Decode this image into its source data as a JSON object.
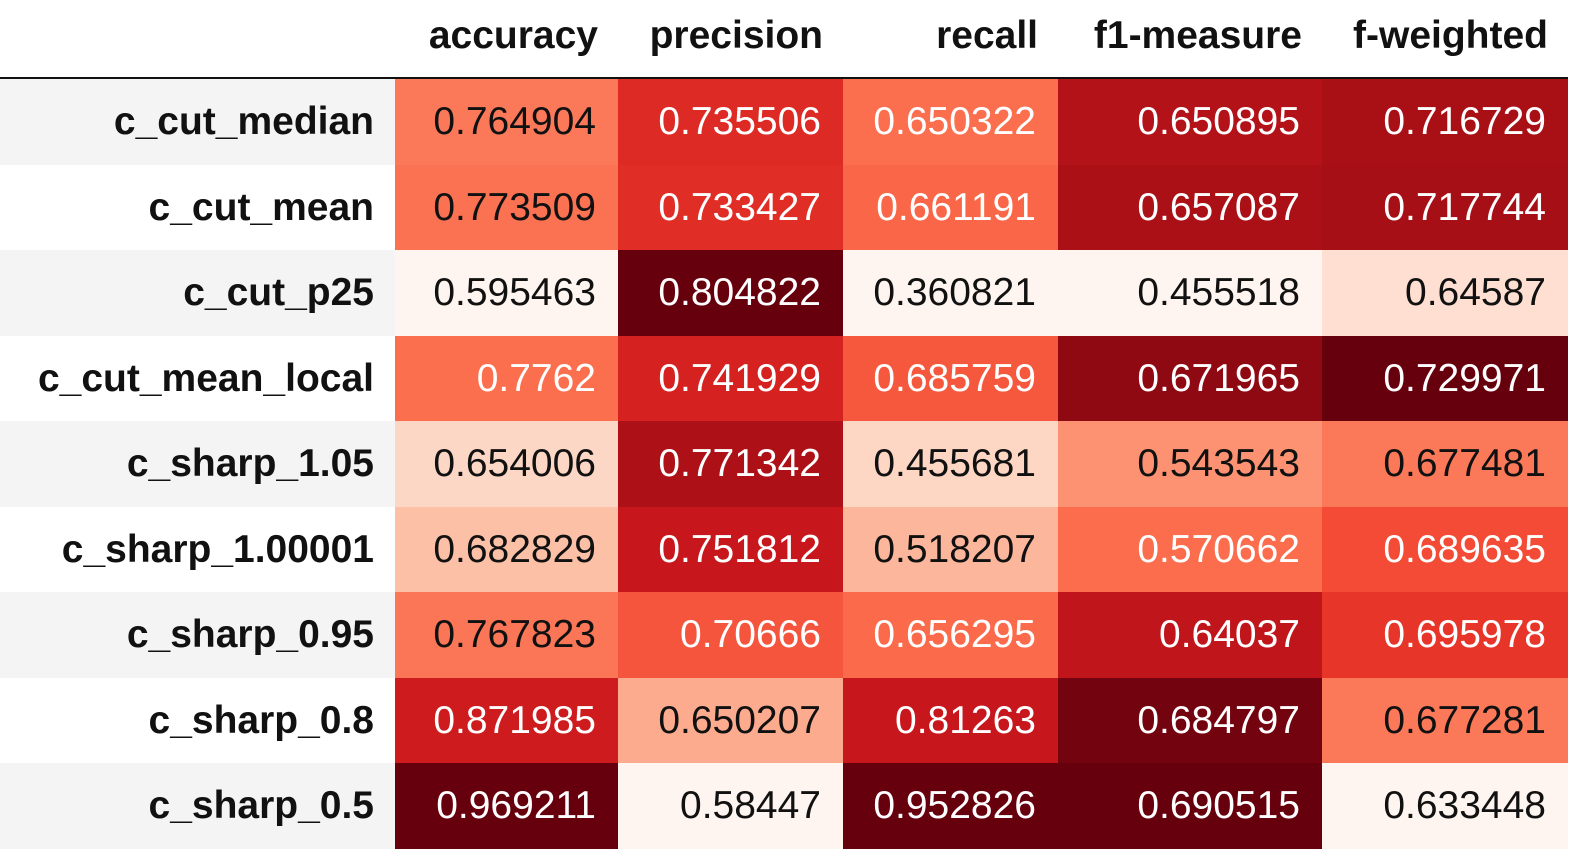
{
  "chart_data": {
    "type": "heatmap",
    "columns": [
      "accuracy",
      "precision",
      "recall",
      "f1-measure",
      "f-weighted"
    ],
    "rows": [
      {
        "label": "c_cut_median",
        "values": [
          "0.764904",
          "0.735506",
          "0.650322",
          "0.650895",
          "0.716729"
        ]
      },
      {
        "label": "c_cut_mean",
        "values": [
          "0.773509",
          "0.733427",
          "0.661191",
          "0.657087",
          "0.717744"
        ]
      },
      {
        "label": "c_cut_p25",
        "values": [
          "0.595463",
          "0.804822",
          "0.360821",
          "0.455518",
          "0.64587"
        ]
      },
      {
        "label": "c_cut_mean_local",
        "values": [
          "0.7762",
          "0.741929",
          "0.685759",
          "0.671965",
          "0.729971"
        ]
      },
      {
        "label": "c_sharp_1.05",
        "values": [
          "0.654006",
          "0.771342",
          "0.455681",
          "0.543543",
          "0.677481"
        ]
      },
      {
        "label": "c_sharp_1.00001",
        "values": [
          "0.682829",
          "0.751812",
          "0.518207",
          "0.570662",
          "0.689635"
        ]
      },
      {
        "label": "c_sharp_0.95",
        "values": [
          "0.767823",
          "0.70666",
          "0.656295",
          "0.64037",
          "0.695978"
        ]
      },
      {
        "label": "c_sharp_0.8",
        "values": [
          "0.871985",
          "0.650207",
          "0.81263",
          "0.684797",
          "0.677281"
        ]
      },
      {
        "label": "c_sharp_0.5",
        "values": [
          "0.969211",
          "0.58447",
          "0.952826",
          "0.690515",
          "0.633448"
        ]
      }
    ],
    "colormap": "per-column sequential white-to-dark-red (Reds)",
    "colors": {
      "light": "#fff5f0",
      "mid": "#fb6a4a",
      "dark": "#67000d",
      "row_band": "#f4f4f4",
      "text_dark": "#111111",
      "text_light": "#ffffff"
    }
  }
}
